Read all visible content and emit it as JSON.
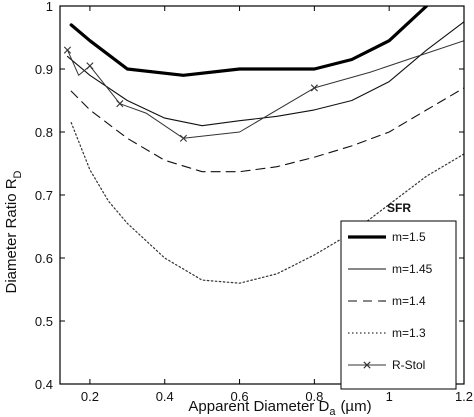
{
  "chart_data": {
    "type": "line",
    "xlabel": "Apparent Diameter D",
    "xlabel_sub": "a",
    "xlabel_unit": "(µm)",
    "ylabel": "Diameter Ratio R",
    "ylabel_sub": "D",
    "xlim": [
      0.12,
      1.2
    ],
    "ylim": [
      0.4,
      1.0
    ],
    "x_ticks": [
      0.2,
      0.4,
      0.6,
      0.8,
      1.0,
      1.2
    ],
    "x_tick_labels": [
      "0.2",
      "0.4",
      "0.6",
      "0.8",
      "1",
      "1.2"
    ],
    "y_ticks": [
      0.4,
      0.5,
      0.6,
      0.7,
      0.8,
      0.9,
      1.0
    ],
    "y_tick_labels": [
      "0.4",
      "0.5",
      "0.6",
      "0.7",
      "0.8",
      "0.9",
      "1"
    ],
    "grid": false,
    "legend_title": "SFR",
    "legend_position": "bottom-right",
    "series": [
      {
        "name": "m=1.5",
        "style": "thick-solid",
        "color": "#000000",
        "points": [
          [
            0.15,
            0.97
          ],
          [
            0.2,
            0.945
          ],
          [
            0.3,
            0.9
          ],
          [
            0.45,
            0.89
          ],
          [
            0.6,
            0.9
          ],
          [
            0.7,
            0.9
          ],
          [
            0.8,
            0.9
          ],
          [
            0.9,
            0.915
          ],
          [
            1.0,
            0.945
          ],
          [
            1.1,
            1.0
          ]
        ]
      },
      {
        "name": "m=1.45",
        "style": "thin-solid",
        "color": "#111111",
        "points": [
          [
            0.14,
            0.92
          ],
          [
            0.2,
            0.89
          ],
          [
            0.3,
            0.85
          ],
          [
            0.4,
            0.822
          ],
          [
            0.5,
            0.81
          ],
          [
            0.6,
            0.818
          ],
          [
            0.7,
            0.825
          ],
          [
            0.8,
            0.835
          ],
          [
            0.9,
            0.85
          ],
          [
            1.0,
            0.88
          ],
          [
            1.1,
            0.93
          ],
          [
            1.2,
            0.975
          ]
        ]
      },
      {
        "name": "m=1.4",
        "style": "dashed",
        "color": "#111111",
        "points": [
          [
            0.15,
            0.865
          ],
          [
            0.2,
            0.835
          ],
          [
            0.3,
            0.79
          ],
          [
            0.4,
            0.755
          ],
          [
            0.5,
            0.737
          ],
          [
            0.6,
            0.737
          ],
          [
            0.7,
            0.745
          ],
          [
            0.8,
            0.76
          ],
          [
            0.9,
            0.778
          ],
          [
            1.0,
            0.8
          ],
          [
            1.1,
            0.835
          ],
          [
            1.2,
            0.87
          ]
        ]
      },
      {
        "name": "m=1.3",
        "style": "dotted",
        "color": "#333333",
        "points": [
          [
            0.15,
            0.815
          ],
          [
            0.2,
            0.74
          ],
          [
            0.25,
            0.69
          ],
          [
            0.3,
            0.655
          ],
          [
            0.4,
            0.6
          ],
          [
            0.5,
            0.565
          ],
          [
            0.6,
            0.56
          ],
          [
            0.7,
            0.575
          ],
          [
            0.8,
            0.605
          ],
          [
            0.9,
            0.64
          ],
          [
            1.0,
            0.685
          ],
          [
            1.1,
            0.73
          ],
          [
            1.2,
            0.765
          ]
        ]
      },
      {
        "name": "R-Stol",
        "style": "thin-x-markers",
        "color": "#333333",
        "points": [
          [
            0.14,
            0.93
          ],
          [
            0.17,
            0.89
          ],
          [
            0.2,
            0.905
          ],
          [
            0.28,
            0.845
          ],
          [
            0.35,
            0.83
          ],
          [
            0.45,
            0.79
          ],
          [
            0.6,
            0.8
          ],
          [
            0.8,
            0.87
          ],
          [
            0.95,
            0.895
          ],
          [
            1.05,
            0.915
          ],
          [
            1.2,
            0.945
          ]
        ],
        "marker_indices": [
          0,
          2,
          3,
          5,
          7
        ]
      }
    ]
  }
}
